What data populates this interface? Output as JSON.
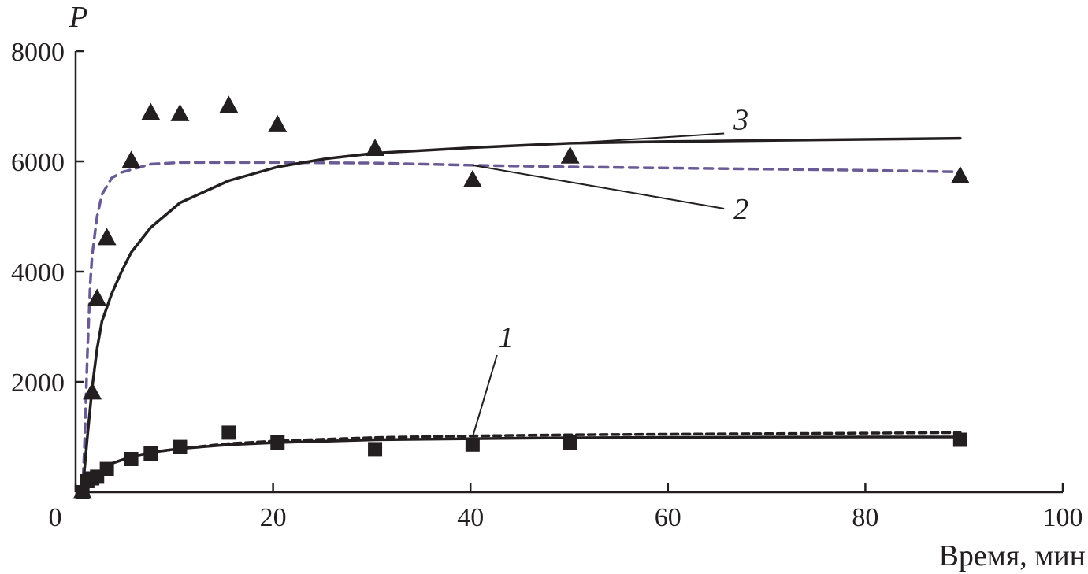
{
  "chart_data": {
    "type": "scatter",
    "title": "",
    "xlabel": "Время, мин",
    "ylabel": "P",
    "xlim": [
      0,
      100
    ],
    "ylim": [
      0,
      8000
    ],
    "x_ticks": [
      0,
      20,
      40,
      60,
      80,
      100
    ],
    "y_ticks": [
      2000,
      4000,
      6000,
      8000
    ],
    "x_tick_labels": [
      "0",
      "20",
      "40",
      "60",
      "80",
      "100"
    ],
    "y_tick_labels": [
      "2000",
      "4000",
      "6000",
      "8000"
    ],
    "grid": false,
    "legend": "none",
    "colors": {
      "axis": "#231f20",
      "solid": "#231f20",
      "dashed_curve_2": "#6b5b95"
    },
    "series": [
      {
        "marker": "square",
        "points": [
          [
            0,
            0
          ],
          [
            0.5,
            200
          ],
          [
            1,
            250
          ],
          [
            1.5,
            280
          ],
          [
            2.5,
            420
          ],
          [
            5,
            600
          ],
          [
            7,
            700
          ],
          [
            10,
            820
          ],
          [
            15,
            1080
          ],
          [
            20,
            900
          ],
          [
            30,
            780
          ],
          [
            40,
            860
          ],
          [
            50,
            900
          ],
          [
            90,
            950
          ]
        ]
      },
      {
        "marker": "triangle",
        "points": [
          [
            0,
            0
          ],
          [
            1,
            1800
          ],
          [
            1.5,
            3500
          ],
          [
            2.5,
            4600
          ],
          [
            5,
            6000
          ],
          [
            7,
            6870
          ],
          [
            10,
            6850
          ],
          [
            15,
            7000
          ],
          [
            20,
            6650
          ],
          [
            30,
            6220
          ],
          [
            40,
            5650
          ],
          [
            50,
            6080
          ],
          [
            90,
            5720
          ]
        ]
      },
      {
        "style": "solid",
        "points": [
          [
            0,
            0
          ],
          [
            1,
            220
          ],
          [
            2,
            400
          ],
          [
            3,
            520
          ],
          [
            5,
            640
          ],
          [
            7,
            720
          ],
          [
            10,
            790
          ],
          [
            15,
            860
          ],
          [
            20,
            900
          ],
          [
            30,
            950
          ],
          [
            40,
            970
          ],
          [
            50,
            985
          ],
          [
            60,
            993
          ],
          [
            70,
            998
          ],
          [
            80,
            1000
          ],
          [
            90,
            1000
          ]
        ]
      },
      {
        "style": "dashed",
        "points": [
          [
            0,
            0
          ],
          [
            1,
            220
          ],
          [
            2,
            400
          ],
          [
            3,
            520
          ],
          [
            5,
            640
          ],
          [
            7,
            720
          ],
          [
            10,
            790
          ],
          [
            15,
            880
          ],
          [
            20,
            930
          ],
          [
            30,
            990
          ],
          [
            40,
            1020
          ],
          [
            50,
            1040
          ],
          [
            60,
            1050
          ],
          [
            70,
            1060
          ],
          [
            80,
            1070
          ],
          [
            90,
            1080
          ]
        ]
      },
      {
        "style": "dashed",
        "points": [
          [
            0,
            0
          ],
          [
            0.2,
            800
          ],
          [
            0.5,
            2500
          ],
          [
            0.8,
            3800
          ],
          [
            1,
            4300
          ],
          [
            1.5,
            5000
          ],
          [
            2,
            5400
          ],
          [
            3,
            5700
          ],
          [
            4,
            5800
          ],
          [
            5,
            5850
          ],
          [
            7,
            5950
          ],
          [
            10,
            5980
          ],
          [
            20,
            5980
          ],
          [
            30,
            5970
          ],
          [
            40,
            5930
          ],
          [
            50,
            5900
          ],
          [
            60,
            5880
          ],
          [
            70,
            5860
          ],
          [
            80,
            5840
          ],
          [
            90,
            5810
          ]
        ]
      },
      {
        "style": "solid",
        "points": [
          [
            0,
            0
          ],
          [
            0.5,
            1000
          ],
          [
            1,
            1900
          ],
          [
            1.5,
            2600
          ],
          [
            2,
            3100
          ],
          [
            3,
            3600
          ],
          [
            4,
            4000
          ],
          [
            5,
            4350
          ],
          [
            7,
            4800
          ],
          [
            10,
            5250
          ],
          [
            12.5,
            5450
          ],
          [
            15,
            5650
          ],
          [
            20,
            5900
          ],
          [
            25,
            6050
          ],
          [
            30,
            6150
          ],
          [
            40,
            6250
          ],
          [
            50,
            6330
          ],
          [
            60,
            6360
          ],
          [
            70,
            6380
          ],
          [
            80,
            6400
          ],
          [
            90,
            6420
          ]
        ]
      }
    ],
    "annotations": [
      {
        "text": "1",
        "target": [
          40,
          1000
        ],
        "label_at": [
          42.5,
          2600
        ]
      },
      {
        "text": "2",
        "target": [
          40,
          5930
        ],
        "label_at": [
          64.5,
          5400
        ]
      },
      {
        "text": "3",
        "target": [
          50,
          6330
        ],
        "label_at": [
          64.5,
          6750
        ]
      }
    ]
  }
}
